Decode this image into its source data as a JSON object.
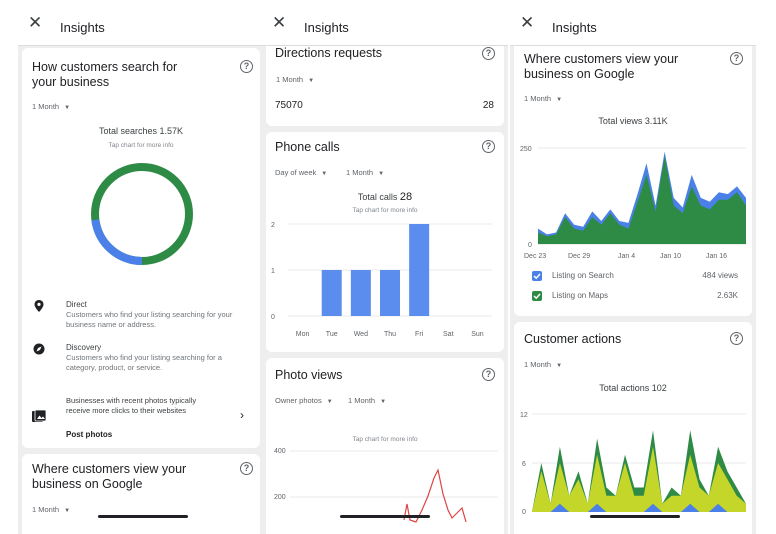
{
  "header": {
    "title": "Insights"
  },
  "panel1": {
    "search_card": {
      "title": "How customers search for your business",
      "range": "1 Month",
      "total": "Total searches 1.57K",
      "hint": "Tap chart for more info",
      "donut": {
        "direct_fraction": 0.23,
        "discovery_fraction": 0.77,
        "direct_color": "#4a80e8",
        "discovery_color": "#2e8b46"
      },
      "items": [
        {
          "icon": "location-pin-icon",
          "title": "Direct",
          "desc": "Customers who find your listing searching for your business name or address."
        },
        {
          "icon": "compass-icon",
          "title": "Discovery",
          "desc": "Customers who find your listing searching for a category, product, or service."
        }
      ],
      "promo": {
        "text": "Businesses with recent photos typically receive more clicks to their websites",
        "link": "Post photos"
      }
    },
    "view_card": {
      "title": "Where customers view your business on Google",
      "range": "1 Month"
    }
  },
  "panel2": {
    "directions_card": {
      "title": "Directions requests",
      "range": "1 Month",
      "zip": "75070",
      "count": "28"
    },
    "calls_card": {
      "title": "Phone calls",
      "range_day": "Day of week",
      "range": "1 Month",
      "total_label": "Total calls",
      "total_value": "28",
      "hint": "Tap chart for more info",
      "y_ticks": [
        "2",
        "1",
        "0"
      ]
    },
    "photo_card": {
      "title": "Photo views",
      "range_owner": "Owner photos",
      "range": "1 Month",
      "hint": "Tap chart for more info",
      "y_ticks": [
        "400",
        "200"
      ]
    }
  },
  "panel3": {
    "view_card": {
      "title": "Where customers view your business on Google",
      "range": "1 Month",
      "total": "Total views 3.11K",
      "y_ticks": [
        "250",
        "0"
      ],
      "x_ticks": [
        "Dec 23",
        "Dec 29",
        "Jan 4",
        "Jan 10",
        "Jan 16"
      ],
      "legend": [
        {
          "label": "Listing on Search",
          "value": "484 views",
          "color": "#4a80e8"
        },
        {
          "label": "Listing on Maps",
          "value": "2.63K",
          "color": "#2e8b46"
        }
      ]
    },
    "actions_card": {
      "title": "Customer actions",
      "range": "1 Month",
      "total": "Total actions 102",
      "y_ticks": [
        "12",
        "6",
        "0"
      ]
    }
  },
  "chart_data": [
    {
      "type": "bar",
      "title": "Total calls 28",
      "categories": [
        "Mon",
        "Tue",
        "Wed",
        "Thu",
        "Fri",
        "Sat",
        "Sun"
      ],
      "values": [
        0,
        1,
        1,
        1,
        2,
        0,
        0
      ],
      "ylim": [
        0,
        2
      ],
      "color": "#5b8def"
    },
    {
      "type": "area",
      "title": "Total views 3.11K",
      "ylim": [
        0,
        250
      ],
      "series": [
        {
          "name": "Listing on Search",
          "color": "#4a80e8",
          "values": [
            40,
            25,
            30,
            80,
            50,
            45,
            85,
            60,
            90,
            60,
            55,
            130,
            210,
            100,
            240,
            120,
            95,
            180,
            120,
            110,
            135,
            130,
            150,
            120
          ]
        },
        {
          "name": "Listing on Maps",
          "color": "#2e8b46",
          "values": [
            30,
            20,
            25,
            70,
            40,
            35,
            70,
            50,
            80,
            50,
            40,
            110,
            180,
            85,
            230,
            100,
            80,
            150,
            100,
            90,
            115,
            115,
            135,
            100
          ]
        }
      ]
    },
    {
      "type": "area",
      "title": "Total actions 102",
      "ylim": [
        0,
        12
      ],
      "series": [
        {
          "name": "",
          "color": "#2e8b46",
          "values": [
            0,
            6,
            1,
            8,
            2,
            5,
            1,
            9,
            3,
            2,
            7,
            3,
            3,
            10,
            1,
            3,
            2,
            10,
            4,
            2,
            8,
            5,
            3,
            1
          ]
        },
        {
          "name": "",
          "color": "#c5d62a",
          "values": [
            0,
            5,
            1,
            6,
            2,
            4,
            1,
            7,
            2,
            2,
            6,
            2,
            2,
            8,
            1,
            2,
            2,
            7,
            3,
            2,
            6,
            4,
            2,
            1
          ]
        },
        {
          "name": "",
          "color": "#4a80e8",
          "values": [
            0,
            0,
            0,
            1,
            0,
            0,
            0,
            1,
            0,
            0,
            0,
            0,
            0,
            1,
            0,
            0,
            0,
            1,
            0,
            0,
            1,
            0,
            0,
            0
          ]
        }
      ]
    }
  ]
}
